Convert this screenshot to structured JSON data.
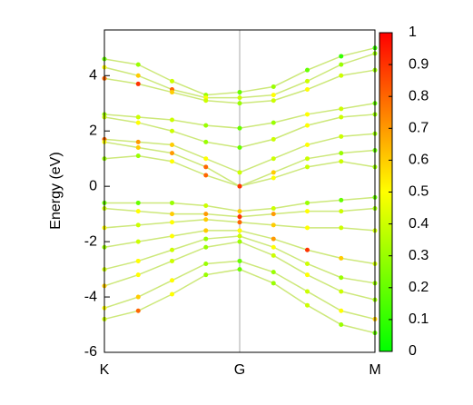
{
  "chart_data": {
    "type": "band-structure",
    "ylabel": "Energy (eV)",
    "x": [
      0,
      0.25,
      0.5,
      0.75,
      1,
      1.25,
      1.5,
      1.75,
      2
    ],
    "xlim": [
      0,
      2
    ],
    "xticks": [
      {
        "value": 0,
        "label": "K"
      },
      {
        "value": 1,
        "label": "G"
      },
      {
        "value": 2,
        "label": "M"
      }
    ],
    "ylim": [
      -6,
      5.65
    ],
    "yticks": [
      -6,
      -4,
      -2,
      0,
      2,
      4
    ],
    "colormap": [
      "#00ff00",
      "#ffff00",
      "#ff0000"
    ],
    "clim": [
      0,
      1
    ],
    "cticks": [
      0,
      0.1,
      0.2,
      0.3,
      0.4,
      0.5,
      0.6,
      0.7,
      0.8,
      0.9,
      1
    ],
    "bands": [
      {
        "values": [
          4.6,
          4.4,
          3.8,
          3.3,
          3.4,
          3.6,
          4.2,
          4.7,
          5.0
        ],
        "weights": [
          0.2,
          0.3,
          0.4,
          0.3,
          0.2,
          0.3,
          0.2,
          0.1,
          0.1
        ]
      },
      {
        "values": [
          4.3,
          4.0,
          3.5,
          3.2,
          3.2,
          3.3,
          3.8,
          4.4,
          4.8
        ],
        "weights": [
          0.5,
          0.6,
          0.8,
          0.5,
          0.4,
          0.5,
          0.4,
          0.3,
          0.3
        ]
      },
      {
        "values": [
          3.9,
          3.7,
          3.4,
          3.1,
          3.0,
          3.1,
          3.5,
          4.0,
          4.2
        ],
        "weights": [
          0.8,
          0.9,
          0.6,
          0.4,
          0.3,
          0.4,
          0.5,
          0.4,
          0.3
        ]
      },
      {
        "values": [
          2.6,
          2.5,
          2.4,
          2.2,
          2.1,
          2.3,
          2.6,
          2.8,
          3.0
        ],
        "weights": [
          0.3,
          0.4,
          0.4,
          0.3,
          0.2,
          0.3,
          0.5,
          0.4,
          0.2
        ]
      },
      {
        "values": [
          2.5,
          2.3,
          2.0,
          1.6,
          1.4,
          1.7,
          2.2,
          2.5,
          2.6
        ],
        "weights": [
          0.4,
          0.5,
          0.4,
          0.3,
          0.2,
          0.4,
          0.5,
          0.4,
          0.3
        ]
      },
      {
        "values": [
          1.7,
          1.6,
          1.5,
          1.0,
          0.5,
          1.0,
          1.5,
          1.8,
          1.9
        ],
        "weights": [
          0.8,
          0.7,
          0.6,
          0.5,
          0.4,
          0.4,
          0.5,
          0.4,
          0.3
        ]
      },
      {
        "values": [
          1.0,
          1.1,
          0.9,
          0.4,
          0.0,
          0.5,
          1.0,
          1.2,
          1.3
        ],
        "weights": [
          0.3,
          0.3,
          0.5,
          0.8,
          0.9,
          0.6,
          0.4,
          0.3,
          0.2
        ]
      },
      {
        "values": [
          1.6,
          1.4,
          1.2,
          0.7,
          0.0,
          0.3,
          0.7,
          0.9,
          0.7
        ],
        "weights": [
          0.5,
          0.6,
          0.7,
          0.8,
          0.9,
          0.5,
          0.4,
          0.4,
          0.3
        ]
      },
      {
        "values": [
          -0.6,
          -0.6,
          -0.6,
          -0.7,
          -0.9,
          -0.8,
          -0.6,
          -0.5,
          -0.4
        ],
        "weights": [
          0.2,
          0.2,
          0.3,
          0.4,
          0.6,
          0.4,
          0.3,
          0.2,
          0.2
        ]
      },
      {
        "values": [
          -0.8,
          -0.9,
          -1.0,
          -1.0,
          -1.1,
          -1.0,
          -0.9,
          -0.9,
          -0.8
        ],
        "weights": [
          0.4,
          0.5,
          0.6,
          0.7,
          0.9,
          0.7,
          0.5,
          0.4,
          0.3
        ]
      },
      {
        "values": [
          -1.5,
          -1.4,
          -1.3,
          -1.2,
          -1.3,
          -1.4,
          -1.5,
          -1.5,
          -1.6
        ],
        "weights": [
          0.5,
          0.4,
          0.5,
          0.6,
          0.8,
          0.6,
          0.5,
          0.4,
          0.4
        ]
      },
      {
        "values": [
          -2.2,
          -2.0,
          -1.8,
          -1.6,
          -1.6,
          -1.9,
          -2.3,
          -2.6,
          -2.8
        ],
        "weights": [
          0.3,
          0.4,
          0.5,
          0.6,
          0.5,
          0.7,
          0.9,
          0.6,
          0.4
        ]
      },
      {
        "values": [
          -3.0,
          -2.7,
          -2.3,
          -1.9,
          -1.8,
          -2.2,
          -2.8,
          -3.3,
          -3.5
        ],
        "weights": [
          0.4,
          0.5,
          0.4,
          0.3,
          0.4,
          0.5,
          0.4,
          0.3,
          0.3
        ]
      },
      {
        "values": [
          -3.6,
          -3.2,
          -2.7,
          -2.2,
          -2.0,
          -2.5,
          -3.2,
          -3.8,
          -4.1
        ],
        "weights": [
          0.6,
          0.5,
          0.4,
          0.3,
          0.3,
          0.4,
          0.5,
          0.4,
          0.3
        ]
      },
      {
        "values": [
          -4.4,
          -4.0,
          -3.4,
          -2.8,
          -2.7,
          -3.1,
          -3.8,
          -4.5,
          -4.8
        ],
        "weights": [
          0.5,
          0.6,
          0.5,
          0.3,
          0.2,
          0.3,
          0.4,
          0.5,
          0.6
        ]
      },
      {
        "values": [
          -4.8,
          -4.5,
          -3.9,
          -3.2,
          -3.0,
          -3.5,
          -4.3,
          -5.0,
          -5.3
        ],
        "weights": [
          0.4,
          0.8,
          0.5,
          0.3,
          0.2,
          0.3,
          0.4,
          0.3,
          0.2
        ]
      }
    ]
  }
}
